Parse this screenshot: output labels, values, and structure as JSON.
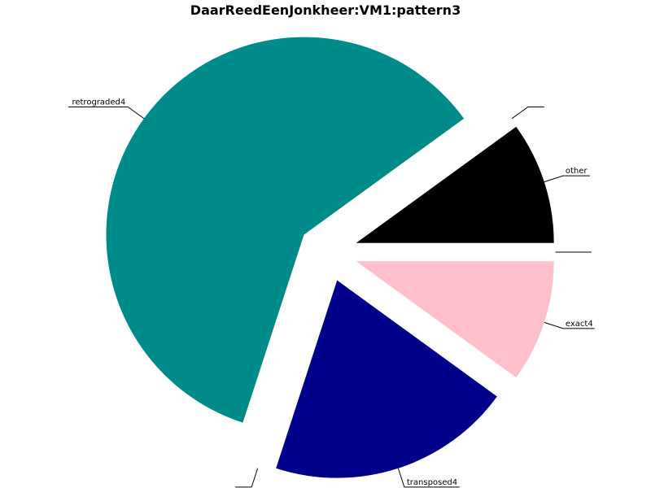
{
  "chart_data": {
    "type": "pie",
    "title": "DaarReedEenJonkheer:VM1:pattern3",
    "start_angle_deg": 0,
    "direction": "counterclockwise",
    "exploded": true,
    "slices": [
      {
        "label": "other",
        "value": 1,
        "color": "#000000"
      },
      {
        "label": "",
        "value": 0,
        "color": "#ffffff"
      },
      {
        "label": "retrograded4",
        "value": 6,
        "color": "#008b8b"
      },
      {
        "label": "",
        "value": 0,
        "color": "#ffffff"
      },
      {
        "label": "transposed4",
        "value": 2,
        "color": "#00008b"
      },
      {
        "label": "exact4",
        "value": 1,
        "color": "#ffc0cb"
      },
      {
        "label": "",
        "value": 0,
        "color": "#ffffff"
      }
    ]
  }
}
